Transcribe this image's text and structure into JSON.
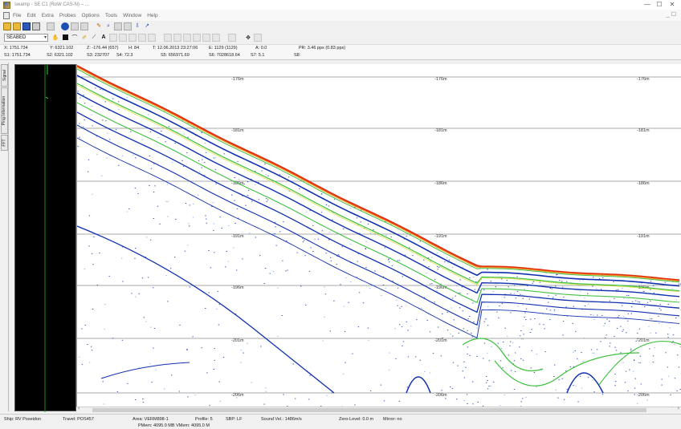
{
  "window": {
    "title": "swamp - SE C1 (RoW CAS-N) – …",
    "controls": {
      "minimize": "—",
      "maximize": "☐",
      "close": "✕"
    }
  },
  "menu": [
    "File",
    "Edit",
    "Extra",
    "Probes",
    "Options",
    "Tools",
    "Window",
    "Help"
  ],
  "toolbar2": {
    "channel_select": "SEABED"
  },
  "info": {
    "X": "X: 1751.734",
    "Y": "Y: 6321.102",
    "Z": "Z: -176.44 (657)",
    "H": "H: 84",
    "T": "T: 12.06.2013 23:27:06",
    "E": "E: 1129 (1129)",
    "A": "A: 0.0",
    "PR": "PR: 3.46 pps (0.83 pps)",
    "S1": "S1: 1751.734",
    "S2": "S2: 6321.102",
    "S3": "S3: 232707",
    "S4": "S4: 72.3",
    "S5": "S5: 656971.69",
    "S6": "S6: 7028618.64",
    "S7": "S7: 5.1",
    "S8": "S8:"
  },
  "side_tabs": [
    "Signal",
    "Ping Information",
    "FFT"
  ],
  "depth_lines": [
    {
      "label": "-176m"
    },
    {
      "label": "-181m"
    },
    {
      "label": "-186m"
    },
    {
      "label": "-191m"
    },
    {
      "label": "-196m"
    },
    {
      "label": "-201m"
    },
    {
      "label": "-206m"
    }
  ],
  "status": {
    "ship": "Ship: RV Poseidon",
    "travel": "Travel: POS457",
    "area": "Area: VERM898-1",
    "profile": "Profile: 5",
    "sbp": "SBP: LF",
    "sound_vel": "Sound Vel.: 1486m/s",
    "zero_level": "Zero-Level: 0.0 m",
    "mirror": "Mirror: no",
    "memory": "PMem: 4095.0 MB VMem: 4095.0 M"
  },
  "colors": {
    "seabed_red": "#e03010",
    "seabed_orange": "#f09020",
    "layer_green": "#40c040",
    "layer_yellow": "#d8e030",
    "signal_blue": "#1030b0",
    "signal_light": "#6fa8e8"
  }
}
